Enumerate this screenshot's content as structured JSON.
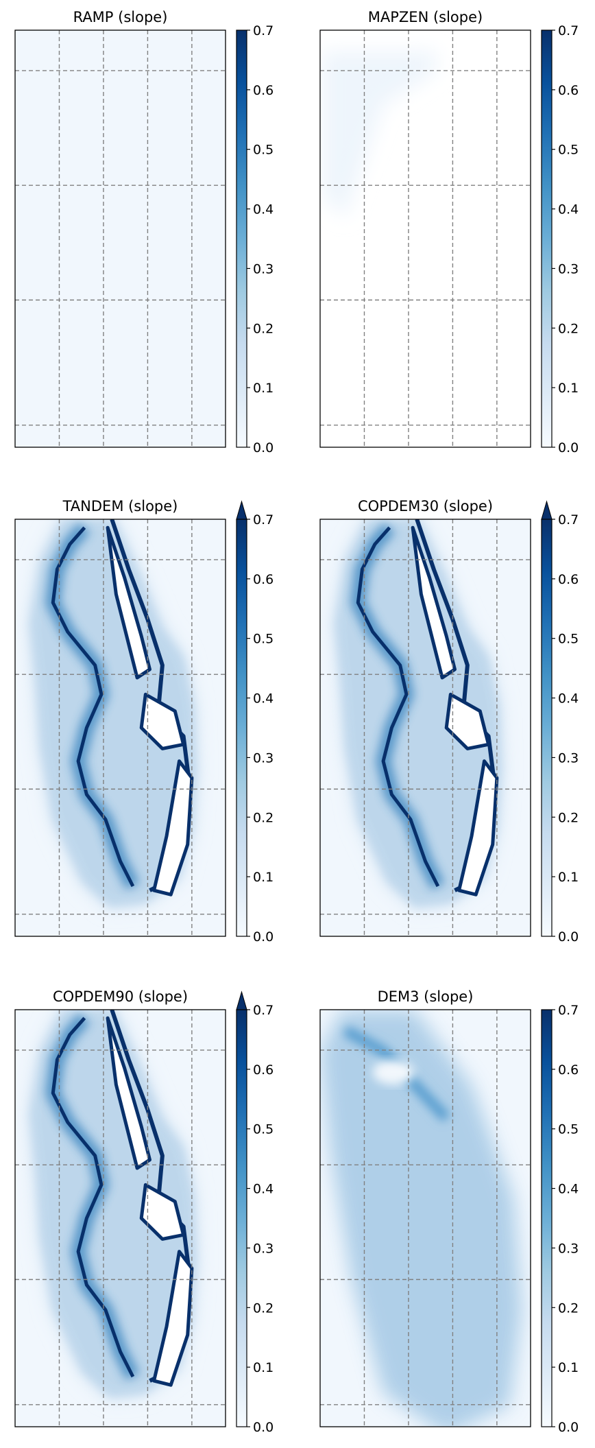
{
  "chart_data": [
    {
      "type": "heatmap",
      "title": "RAMP (slope)",
      "colormap": "Blues",
      "colorbar": {
        "ticks": [
          "0.0",
          "0.1",
          "0.2",
          "0.3",
          "0.4",
          "0.5",
          "0.6",
          "0.7"
        ],
        "range": [
          0.0,
          0.7
        ],
        "extend": "neither"
      },
      "grid": true,
      "grid_style": "dashed",
      "approx_value": 0.02,
      "pattern": "uniform"
    },
    {
      "type": "heatmap",
      "title": "MAPZEN (slope)",
      "colormap": "Blues",
      "colorbar": {
        "ticks": [
          "0.0",
          "0.1",
          "0.2",
          "0.3",
          "0.4",
          "0.5",
          "0.6",
          "0.7"
        ],
        "range": [
          0.0,
          0.7
        ],
        "extend": "neither"
      },
      "grid": true,
      "grid_style": "dashed",
      "approx_value": 0.0,
      "pattern": "mostly-empty"
    },
    {
      "type": "heatmap",
      "title": "TANDEM (slope)",
      "colormap": "Blues",
      "colorbar": {
        "ticks": [
          "0.0",
          "0.1",
          "0.2",
          "0.3",
          "0.4",
          "0.5",
          "0.6",
          "0.7"
        ],
        "range": [
          0.0,
          0.7
        ],
        "extend": "max"
      },
      "grid": true,
      "grid_style": "dashed",
      "pattern": "glacier"
    },
    {
      "type": "heatmap",
      "title": "COPDEM30 (slope)",
      "colormap": "Blues",
      "colorbar": {
        "ticks": [
          "0.0",
          "0.1",
          "0.2",
          "0.3",
          "0.4",
          "0.5",
          "0.6",
          "0.7"
        ],
        "range": [
          0.0,
          0.7
        ],
        "extend": "max"
      },
      "grid": true,
      "grid_style": "dashed",
      "pattern": "glacier"
    },
    {
      "type": "heatmap",
      "title": "COPDEM90 (slope)",
      "colormap": "Blues",
      "colorbar": {
        "ticks": [
          "0.0",
          "0.1",
          "0.2",
          "0.3",
          "0.4",
          "0.5",
          "0.6",
          "0.7"
        ],
        "range": [
          0.0,
          0.7
        ],
        "extend": "max"
      },
      "grid": true,
      "grid_style": "dashed",
      "pattern": "glacier"
    },
    {
      "type": "heatmap",
      "title": "DEM3 (slope)",
      "colormap": "Blues",
      "colorbar": {
        "ticks": [
          "0.0",
          "0.1",
          "0.2",
          "0.3",
          "0.4",
          "0.5",
          "0.6",
          "0.7"
        ],
        "range": [
          0.0,
          0.7
        ],
        "extend": "neither"
      },
      "grid": true,
      "grid_style": "dashed",
      "pattern": "smooth"
    }
  ]
}
